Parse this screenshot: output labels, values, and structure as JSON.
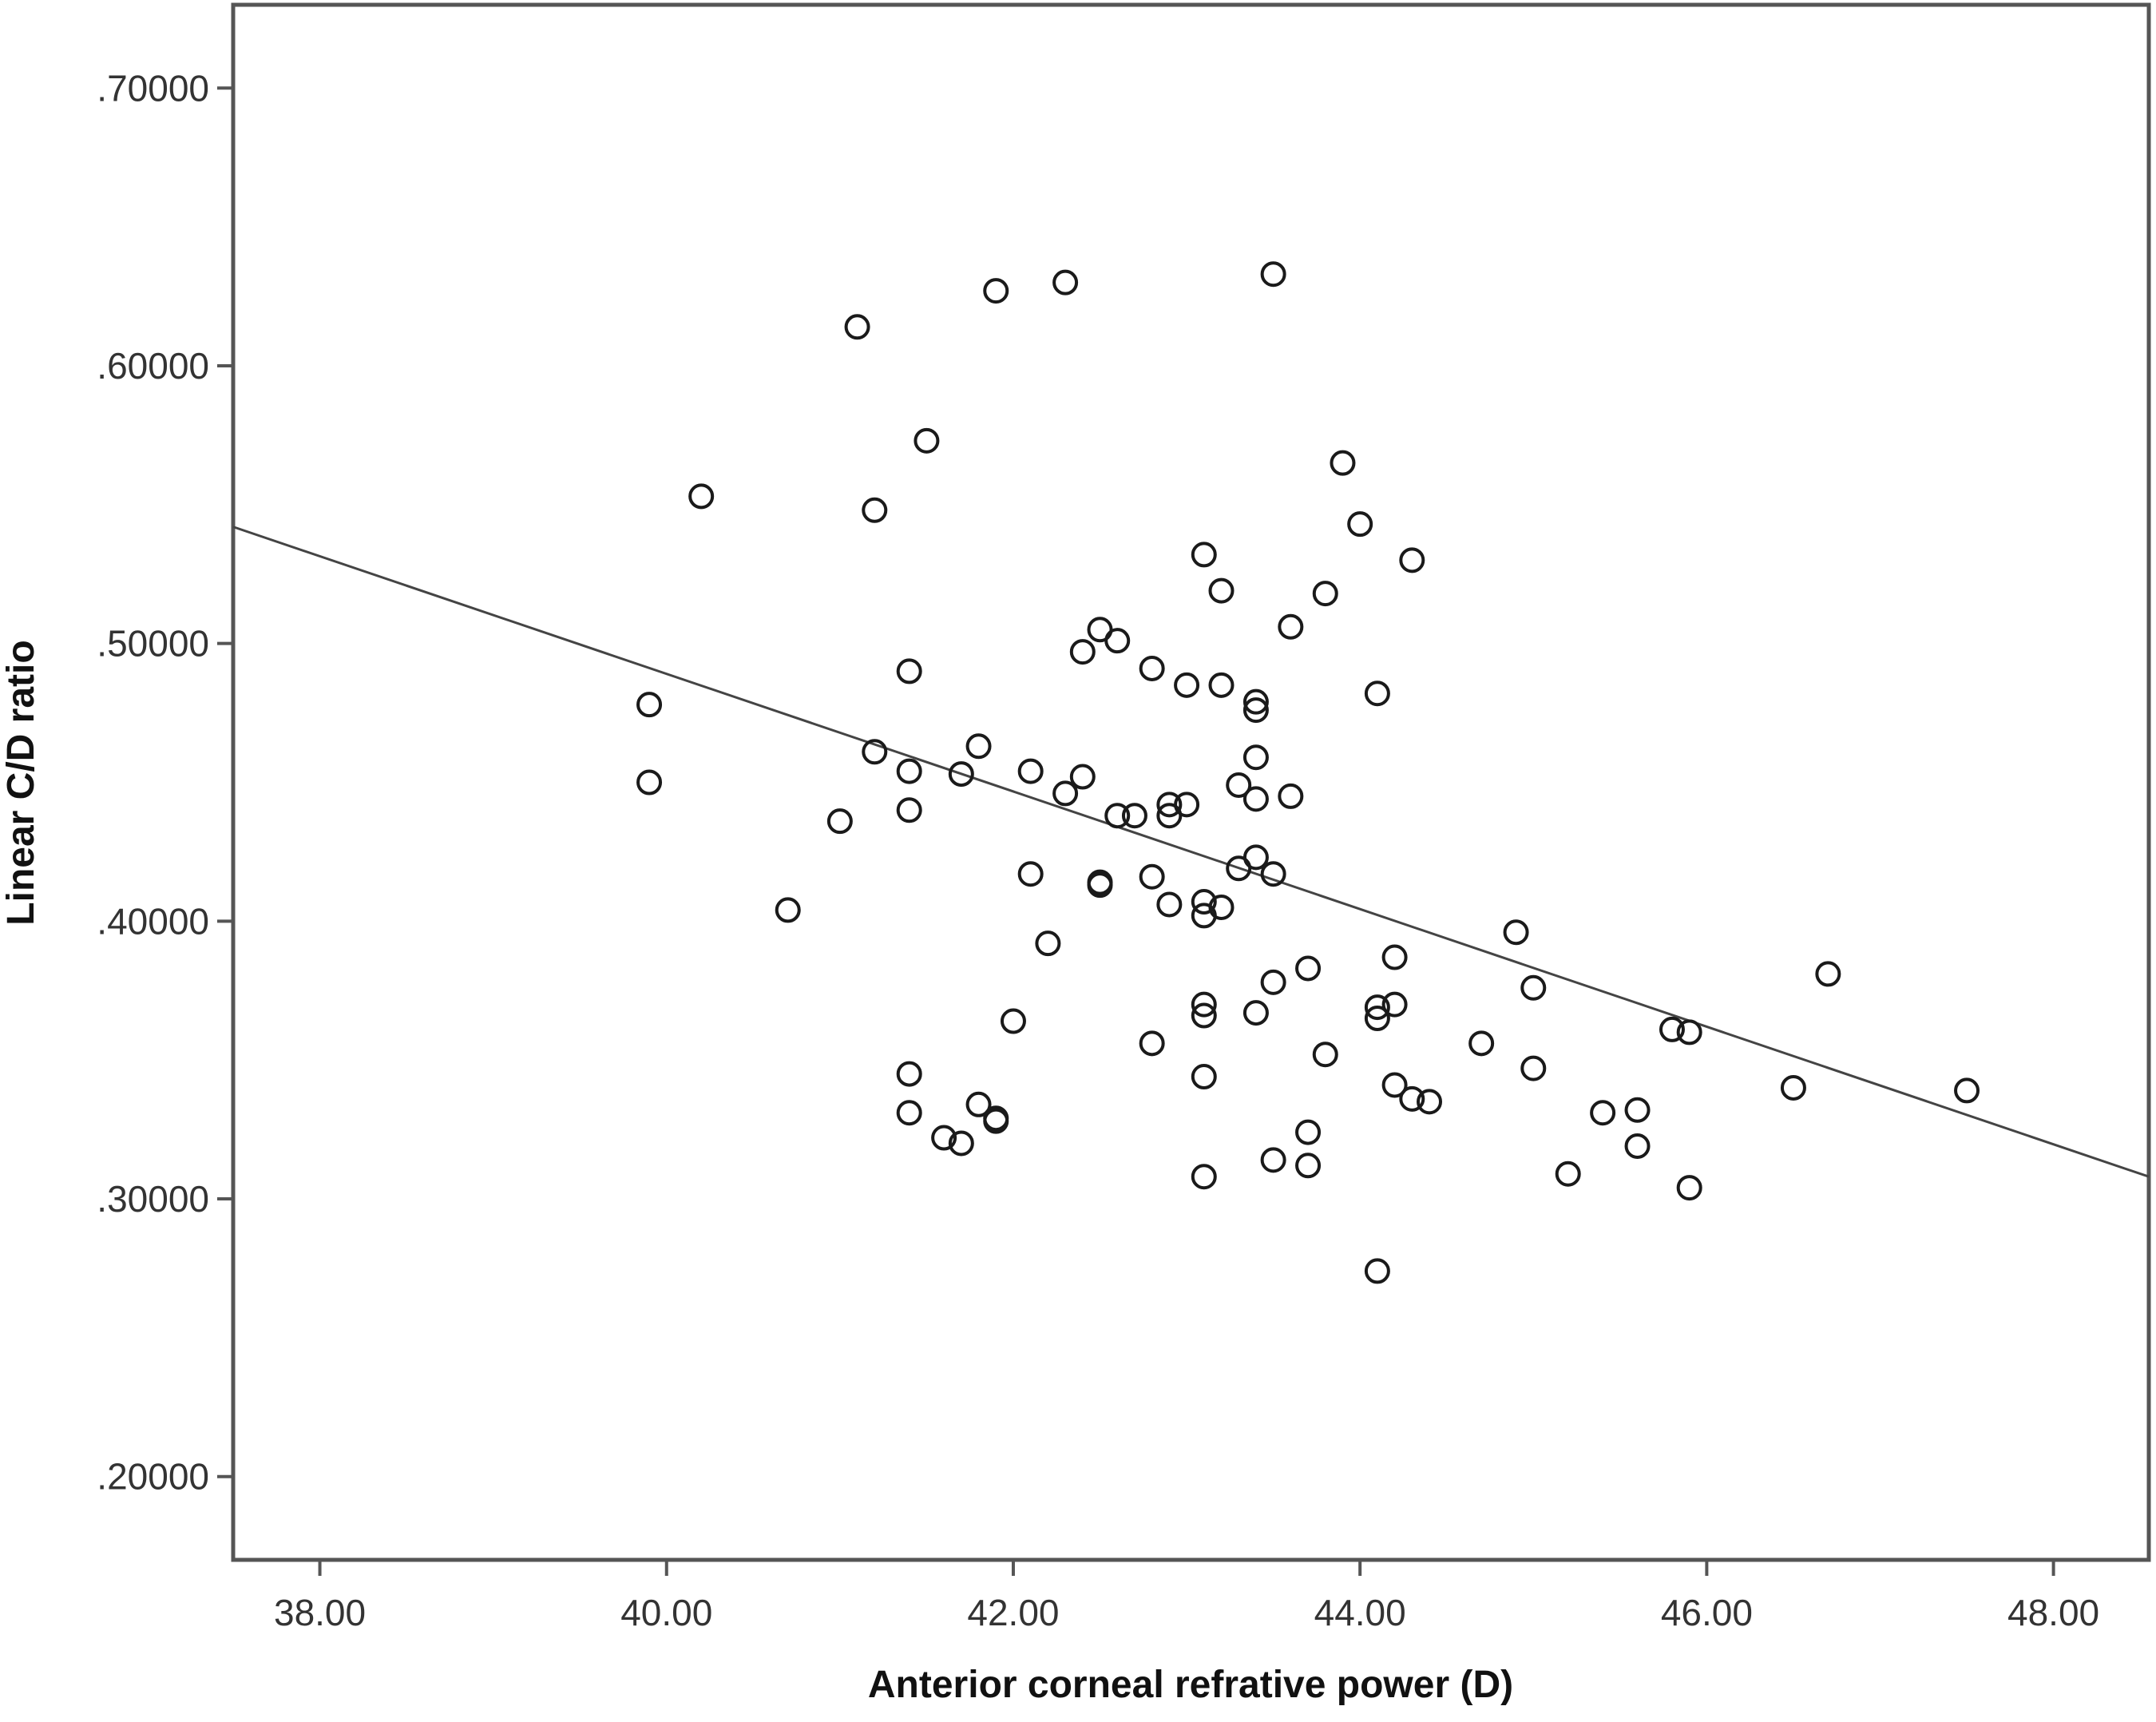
{
  "chart_data": {
    "type": "scatter",
    "xlabel": "Anterior corneal refrative power (D)",
    "ylabel": "Linear C/D ratio",
    "xlim": [
      37.5,
      48.55
    ],
    "ylim": [
      0.17,
      0.73
    ],
    "x_ticks": [
      38,
      40,
      42,
      44,
      46,
      48
    ],
    "x_tick_labels": [
      "38.00",
      "40.00",
      "42.00",
      "44.00",
      "46.00",
      "48.00"
    ],
    "y_ticks": [
      0.2,
      0.3,
      0.4,
      0.5,
      0.6,
      0.7
    ],
    "y_tick_labels": [
      ".20000",
      ".30000",
      ".40000",
      ".50000",
      ".60000",
      ".70000"
    ],
    "grid": false,
    "marker": "open-circle",
    "colors": {
      "marker": "#1a1a1a",
      "line": "#444444",
      "frame": "#555555"
    },
    "fit_line": {
      "x": [
        37.5,
        48.55
      ],
      "y": [
        0.542,
        0.308
      ]
    },
    "points": [
      [
        41.1,
        0.614
      ],
      [
        41.9,
        0.627
      ],
      [
        42.3,
        0.63
      ],
      [
        43.5,
        0.633
      ],
      [
        41.5,
        0.573
      ],
      [
        40.2,
        0.553
      ],
      [
        41.2,
        0.548
      ],
      [
        43.9,
        0.565
      ],
      [
        44.0,
        0.543
      ],
      [
        44.3,
        0.53
      ],
      [
        43.1,
        0.532
      ],
      [
        43.2,
        0.519
      ],
      [
        43.8,
        0.518
      ],
      [
        43.6,
        0.506
      ],
      [
        42.5,
        0.505
      ],
      [
        42.6,
        0.501
      ],
      [
        42.4,
        0.497
      ],
      [
        42.8,
        0.491
      ],
      [
        43.0,
        0.485
      ],
      [
        43.2,
        0.485
      ],
      [
        41.4,
        0.49
      ],
      [
        44.1,
        0.482
      ],
      [
        43.4,
        0.479
      ],
      [
        43.4,
        0.476
      ],
      [
        39.9,
        0.478
      ],
      [
        41.2,
        0.461
      ],
      [
        41.8,
        0.463
      ],
      [
        43.4,
        0.459
      ],
      [
        41.4,
        0.454
      ],
      [
        41.7,
        0.453
      ],
      [
        42.1,
        0.454
      ],
      [
        42.4,
        0.452
      ],
      [
        42.3,
        0.446
      ],
      [
        43.3,
        0.449
      ],
      [
        43.4,
        0.444
      ],
      [
        43.6,
        0.445
      ],
      [
        39.9,
        0.45
      ],
      [
        41.4,
        0.44
      ],
      [
        42.9,
        0.442
      ],
      [
        43.0,
        0.442
      ],
      [
        41.0,
        0.436
      ],
      [
        42.6,
        0.438
      ],
      [
        42.7,
        0.438
      ],
      [
        42.9,
        0.438
      ],
      [
        43.4,
        0.423
      ],
      [
        43.3,
        0.419
      ],
      [
        43.5,
        0.417
      ],
      [
        42.1,
        0.417
      ],
      [
        42.5,
        0.414
      ],
      [
        42.5,
        0.413
      ],
      [
        42.8,
        0.416
      ],
      [
        42.9,
        0.406
      ],
      [
        43.1,
        0.407
      ],
      [
        43.2,
        0.405
      ],
      [
        43.1,
        0.402
      ],
      [
        40.7,
        0.404
      ],
      [
        42.2,
        0.392
      ],
      [
        44.9,
        0.396
      ],
      [
        44.2,
        0.387
      ],
      [
        43.7,
        0.383
      ],
      [
        43.5,
        0.378
      ],
      [
        45.0,
        0.376
      ],
      [
        46.7,
        0.381
      ],
      [
        43.1,
        0.37
      ],
      [
        43.1,
        0.366
      ],
      [
        43.4,
        0.367
      ],
      [
        44.1,
        0.369
      ],
      [
        44.2,
        0.37
      ],
      [
        44.1,
        0.365
      ],
      [
        42.0,
        0.364
      ],
      [
        45.8,
        0.361
      ],
      [
        45.9,
        0.36
      ],
      [
        42.8,
        0.356
      ],
      [
        43.8,
        0.352
      ],
      [
        44.7,
        0.356
      ],
      [
        41.4,
        0.345
      ],
      [
        43.1,
        0.344
      ],
      [
        45.0,
        0.347
      ],
      [
        44.2,
        0.341
      ],
      [
        44.3,
        0.336
      ],
      [
        44.4,
        0.335
      ],
      [
        46.5,
        0.34
      ],
      [
        47.5,
        0.339
      ],
      [
        41.8,
        0.334
      ],
      [
        41.9,
        0.329
      ],
      [
        41.9,
        0.328
      ],
      [
        41.4,
        0.331
      ],
      [
        45.4,
        0.331
      ],
      [
        45.6,
        0.332
      ],
      [
        41.6,
        0.322
      ],
      [
        41.7,
        0.32
      ],
      [
        43.7,
        0.324
      ],
      [
        45.6,
        0.319
      ],
      [
        43.5,
        0.314
      ],
      [
        43.7,
        0.312
      ],
      [
        43.1,
        0.308
      ],
      [
        45.2,
        0.309
      ],
      [
        45.9,
        0.304
      ],
      [
        44.1,
        0.274
      ]
    ]
  }
}
